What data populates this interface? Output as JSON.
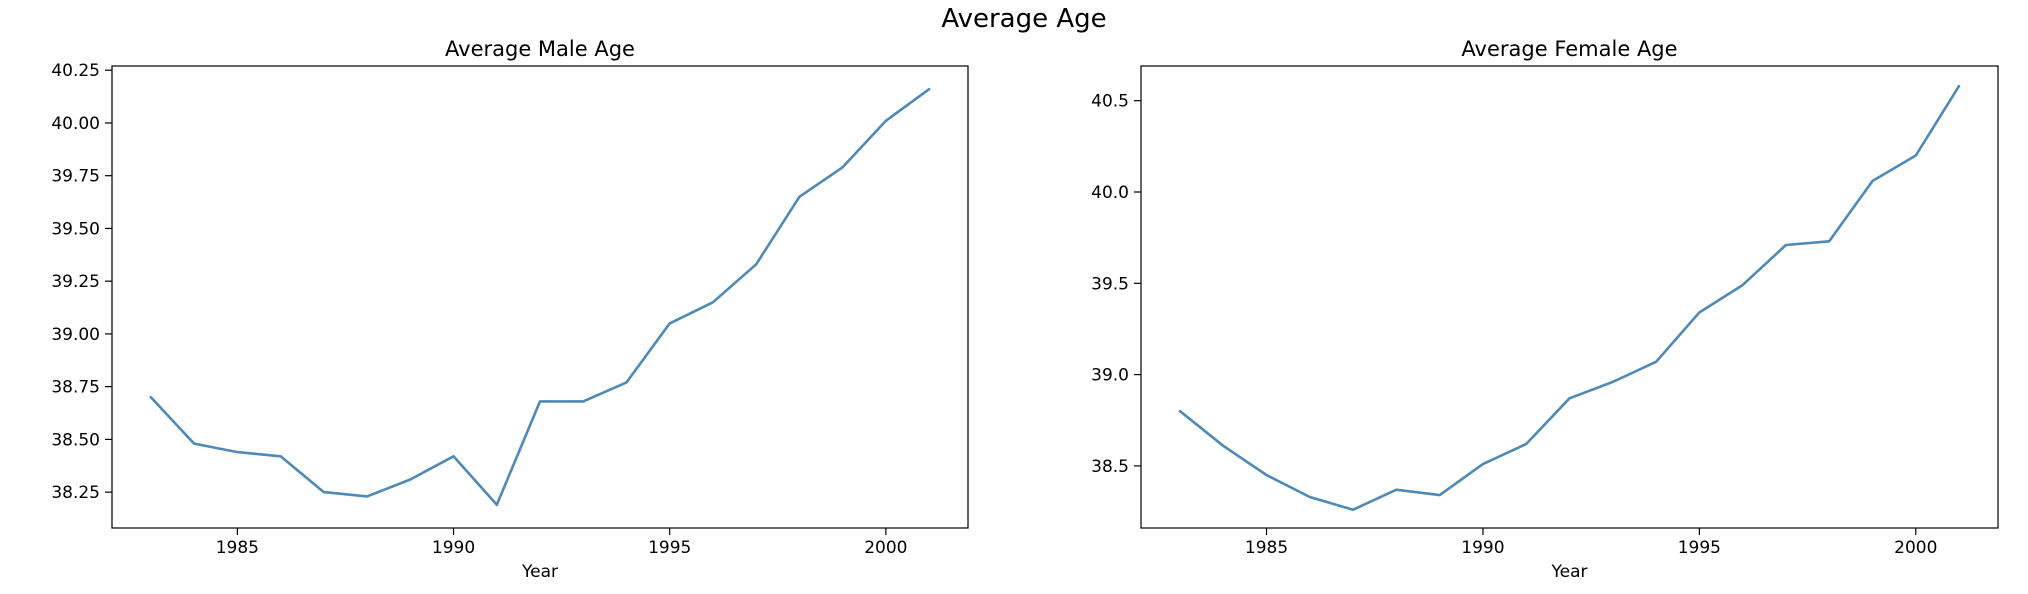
{
  "figure": {
    "suptitle": "Average Age",
    "line_color": "#4e89b8"
  },
  "chart_data": [
    {
      "type": "line",
      "title": "Average Male Age",
      "xlabel": "Year",
      "ylabel": "",
      "xlim": [
        1982.1,
        2001.9
      ],
      "ylim": [
        38.08,
        40.27
      ],
      "xticks": [
        1985,
        1990,
        1995,
        2000
      ],
      "xtick_labels": [
        "1985",
        "1990",
        "1995",
        "2000"
      ],
      "yticks": [
        38.25,
        38.5,
        38.75,
        39.0,
        39.25,
        39.5,
        39.75,
        40.0,
        40.25
      ],
      "ytick_labels": [
        "38.25",
        "38.50",
        "38.75",
        "39.00",
        "39.25",
        "39.50",
        "39.75",
        "40.00",
        "40.25"
      ],
      "grid": false,
      "x": [
        1983,
        1984,
        1985,
        1986,
        1987,
        1988,
        1989,
        1990,
        1991,
        1992,
        1993,
        1994,
        1995,
        1996,
        1997,
        1998,
        1999,
        2000,
        2001
      ],
      "values": [
        38.7,
        38.48,
        38.44,
        38.42,
        38.25,
        38.23,
        38.31,
        38.42,
        38.19,
        38.68,
        38.68,
        38.77,
        39.05,
        39.15,
        39.33,
        39.65,
        39.79,
        40.01,
        40.16
      ]
    },
    {
      "type": "line",
      "title": "Average Female Age",
      "xlabel": "Year",
      "ylabel": "",
      "xlim": [
        1982.1,
        2001.9
      ],
      "ylim": [
        38.16,
        40.69
      ],
      "xticks": [
        1985,
        1990,
        1995,
        2000
      ],
      "xtick_labels": [
        "1985",
        "1990",
        "1995",
        "2000"
      ],
      "yticks": [
        38.5,
        39.0,
        39.5,
        40.0,
        40.5
      ],
      "ytick_labels": [
        "38.5",
        "39.0",
        "39.5",
        "40.0",
        "40.5"
      ],
      "grid": false,
      "x": [
        1983,
        1984,
        1985,
        1986,
        1987,
        1988,
        1989,
        1990,
        1991,
        1992,
        1993,
        1994,
        1995,
        1996,
        1997,
        1998,
        1999,
        2000,
        2001
      ],
      "values": [
        38.8,
        38.61,
        38.45,
        38.33,
        38.26,
        38.37,
        38.34,
        38.51,
        38.62,
        38.87,
        38.96,
        39.07,
        39.34,
        39.49,
        39.71,
        39.73,
        40.06,
        40.2,
        40.58
      ]
    }
  ]
}
